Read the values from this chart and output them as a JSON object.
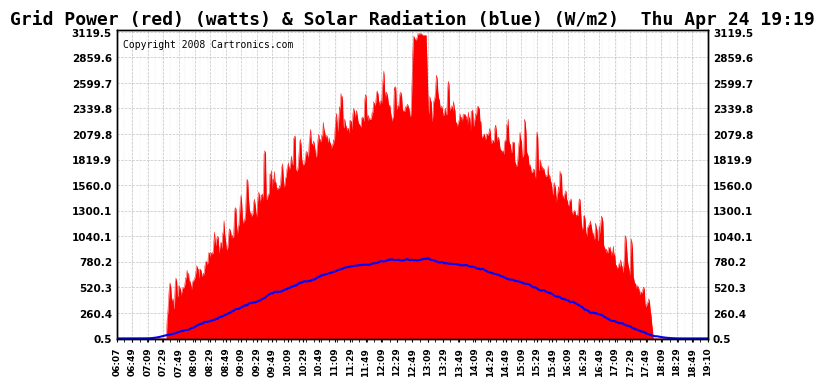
{
  "title": "Grid Power (red) (watts) & Solar Radiation (blue) (W/m2)  Thu Apr 24 19:19",
  "copyright": "Copyright 2008 Cartronics.com",
  "yticks": [
    0.5,
    260.4,
    520.3,
    780.2,
    1040.1,
    1300.1,
    1560.0,
    1819.9,
    2079.8,
    2339.8,
    2599.7,
    2859.6,
    3119.5
  ],
  "ymin": 0.5,
  "ymax": 3119.5,
  "background_color": "#ffffff",
  "plot_bg_color": "#ffffff",
  "grid_color": "#aaaaaa",
  "red_color": "#ff0000",
  "blue_color": "#0000ff",
  "title_fontsize": 13,
  "x_tick_labels": [
    "06:07",
    "06:49",
    "07:09",
    "07:29",
    "07:49",
    "08:09",
    "08:29",
    "08:49",
    "09:09",
    "09:29",
    "09:49",
    "10:09",
    "10:29",
    "10:49",
    "11:09",
    "11:29",
    "11:49",
    "12:09",
    "12:29",
    "12:49",
    "13:09",
    "13:29",
    "13:49",
    "14:09",
    "14:29",
    "14:49",
    "15:09",
    "15:29",
    "15:49",
    "16:09",
    "16:29",
    "16:49",
    "17:09",
    "17:29",
    "17:49",
    "18:09",
    "18:29",
    "18:49",
    "19:10"
  ]
}
